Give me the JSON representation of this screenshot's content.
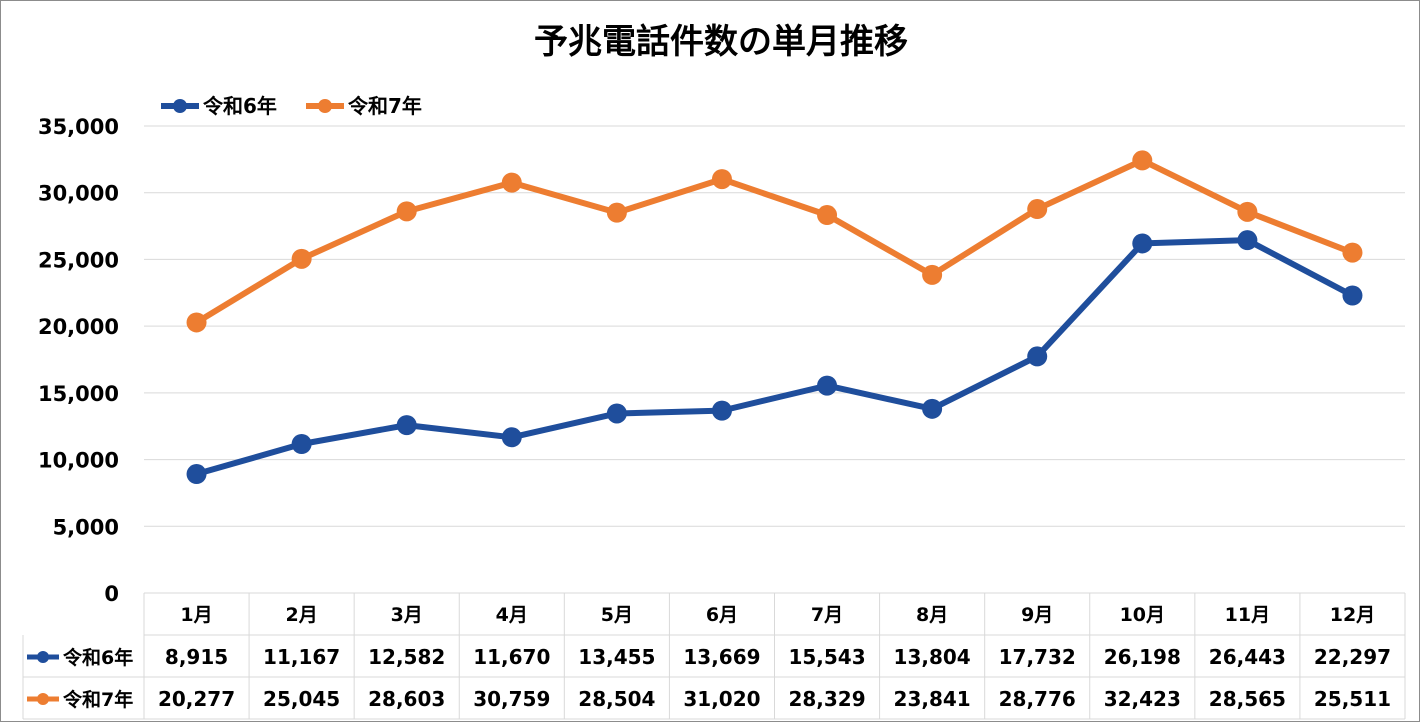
{
  "chart_data": {
    "type": "line",
    "title": "予兆電話件数の単月推移",
    "categories": [
      "1月",
      "2月",
      "3月",
      "4月",
      "5月",
      "6月",
      "7月",
      "8月",
      "9月",
      "10月",
      "11月",
      "12月"
    ],
    "series": [
      {
        "name": "令和6年",
        "color": "#1f4e9c",
        "values": [
          8915,
          11167,
          12582,
          11670,
          13455,
          13669,
          15543,
          13804,
          17732,
          26198,
          26443,
          22297
        ],
        "labels": [
          "8,915",
          "11,167",
          "12,582",
          "11,670",
          "13,455",
          "13,669",
          "15,543",
          "13,804",
          "17,732",
          "26,198",
          "26,443",
          "22,297"
        ]
      },
      {
        "name": "令和7年",
        "color": "#ed7d31",
        "values": [
          20277,
          25045,
          28603,
          30759,
          28504,
          31020,
          28329,
          23841,
          28776,
          32423,
          28565,
          25511
        ],
        "labels": [
          "20,277",
          "25,045",
          "28,603",
          "30,759",
          "28,504",
          "31,020",
          "28,329",
          "23,841",
          "28,776",
          "32,423",
          "28,565",
          "25,511"
        ]
      }
    ],
    "ylim": [
      0,
      35000
    ],
    "yticks": [
      0,
      5000,
      10000,
      15000,
      20000,
      25000,
      30000,
      35000
    ],
    "ytick_labels": [
      "0",
      "5,000",
      "10,000",
      "15,000",
      "20,000",
      "25,000",
      "30,000",
      "35,000"
    ],
    "grid": true,
    "legend_position": "top-left",
    "data_table": true
  }
}
